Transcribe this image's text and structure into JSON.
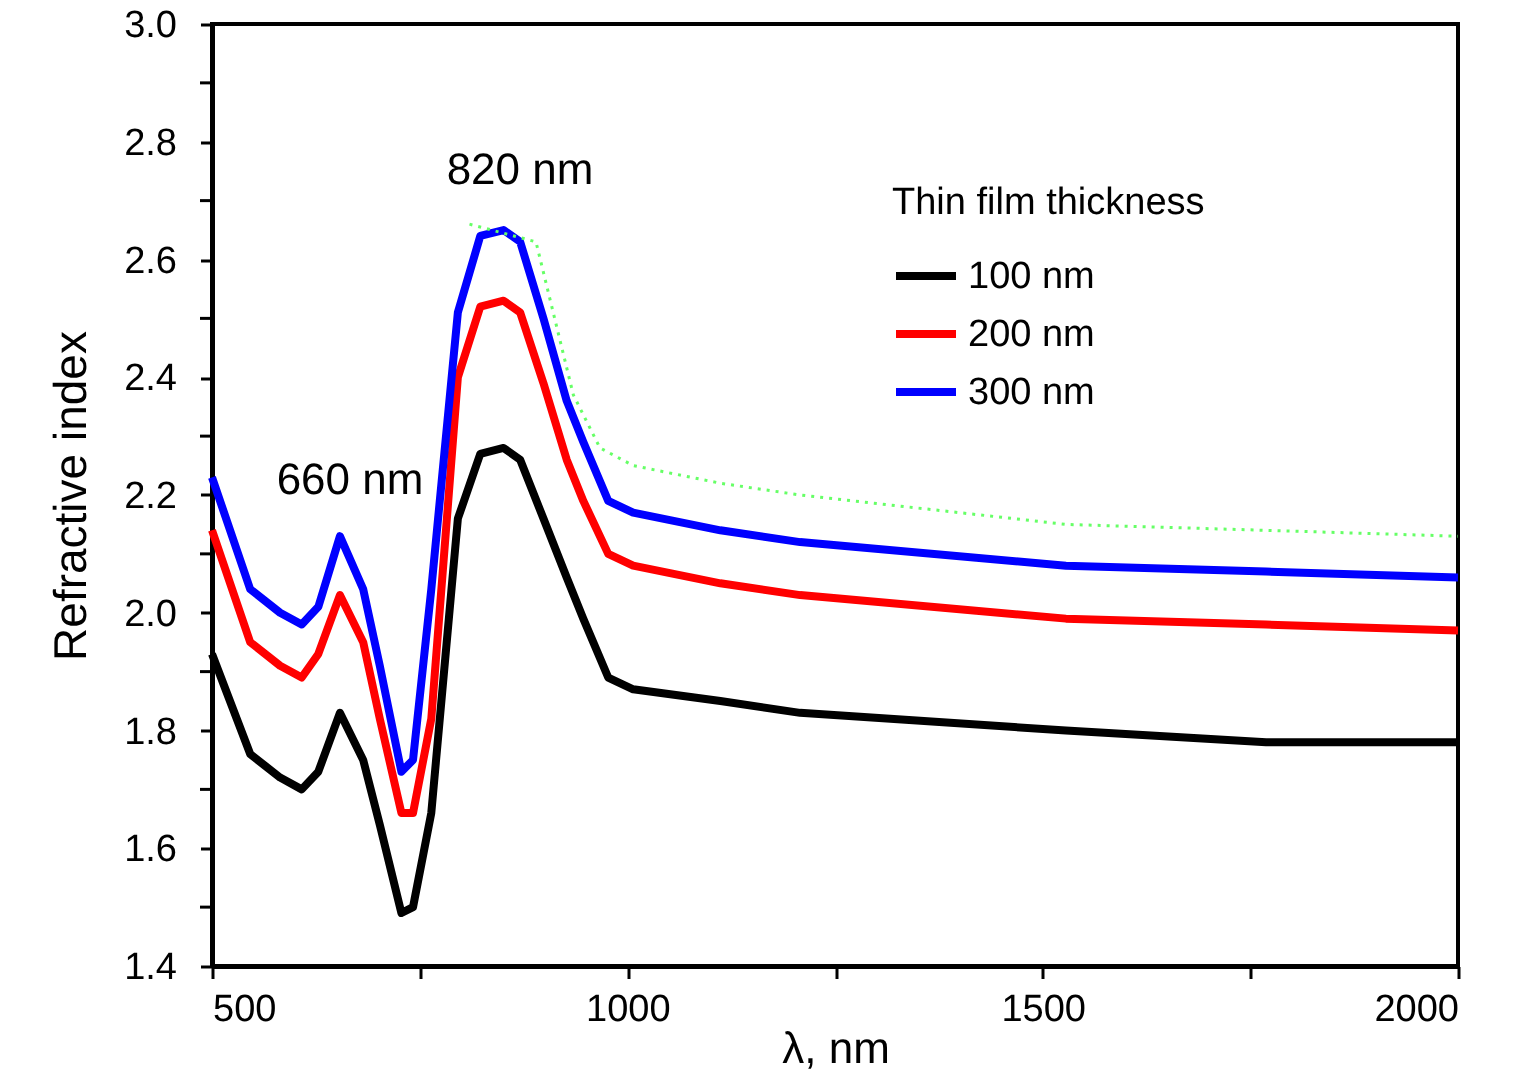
{
  "chart_data": {
    "type": "line",
    "xlabel": "λ, nm",
    "ylabel": "Refractive index",
    "legend_title": "Thin film thickness",
    "legend": "top right",
    "line_style": "solid",
    "marker": "none",
    "grid": false,
    "xlim": [
      500,
      2000
    ],
    "xticks": [
      500,
      {
        "value": 750,
        "label": null
      },
      1000,
      {
        "value": 1250,
        "label": null
      },
      1500,
      {
        "value": 1750,
        "label": null
      },
      2000
    ],
    "ylim": [
      1.4,
      3.0
    ],
    "yticks": [
      1.4,
      {
        "value": 1.5,
        "label": null
      },
      1.6,
      {
        "value": 1.7,
        "label": null
      },
      1.8,
      {
        "value": 1.9,
        "label": null
      },
      {
        "value": 2,
        "label": "2.0"
      },
      {
        "value": 2.1,
        "label": null
      },
      2.2,
      {
        "value": 2.3,
        "label": null
      },
      2.4,
      {
        "value": 2.5,
        "label": null
      },
      2.6,
      {
        "value": 2.7,
        "label": null
      },
      2.8,
      {
        "value": 2.9,
        "label": null
      },
      {
        "value": 3,
        "label": "3.0"
      }
    ],
    "x": [
      500,
      546,
      582,
      608,
      628,
      654,
      682,
      702,
      728,
      742,
      764,
      796,
      823,
      851,
      871,
      899,
      927,
      947,
      977,
      1007,
      1112,
      1208,
      1528,
      1769,
      2000
    ],
    "series": [
      {
        "name": "100 nm",
        "color": "#000000",
        "values": [
          1.93,
          1.76,
          1.72,
          1.7,
          1.73,
          1.83,
          1.75,
          1.64,
          1.49,
          1.5,
          1.66,
          2.16,
          2.27,
          2.28,
          2.26,
          2.16,
          2.06,
          1.99,
          1.89,
          1.87,
          1.85,
          1.83,
          1.8,
          1.78,
          1.78
        ]
      },
      {
        "name": "200 nm",
        "color": "#ff0000",
        "values": [
          2.14,
          1.95,
          1.91,
          1.89,
          1.93,
          2.03,
          1.95,
          1.82,
          1.66,
          1.66,
          1.82,
          2.4,
          2.52,
          2.53,
          2.51,
          2.39,
          2.26,
          2.19,
          2.1,
          2.08,
          2.05,
          2.03,
          1.99,
          1.98,
          1.97
        ]
      },
      {
        "name": "300 nm",
        "color": "#0000ff",
        "values": [
          2.23,
          2.04,
          2.0,
          1.98,
          2.01,
          2.13,
          2.04,
          1.91,
          1.73,
          1.75,
          2.04,
          2.51,
          2.64,
          2.65,
          2.63,
          2.5,
          2.36,
          2.29,
          2.19,
          2.17,
          2.14,
          2.12,
          2.08,
          2.07,
          2.06
        ]
      },
      {
        "color": "#66ff66",
        "line_style": "dotted",
        "x": [
          810,
          890,
          935,
          967,
          1007,
          1112,
          1208,
          1528,
          1769,
          2000
        ],
        "values": [
          2.66,
          2.63,
          2.37,
          2.28,
          2.25,
          2.22,
          2.2,
          2.15,
          2.14,
          2.13
        ]
      }
    ],
    "annotations": [
      "660 nm",
      "820 nm"
    ]
  }
}
